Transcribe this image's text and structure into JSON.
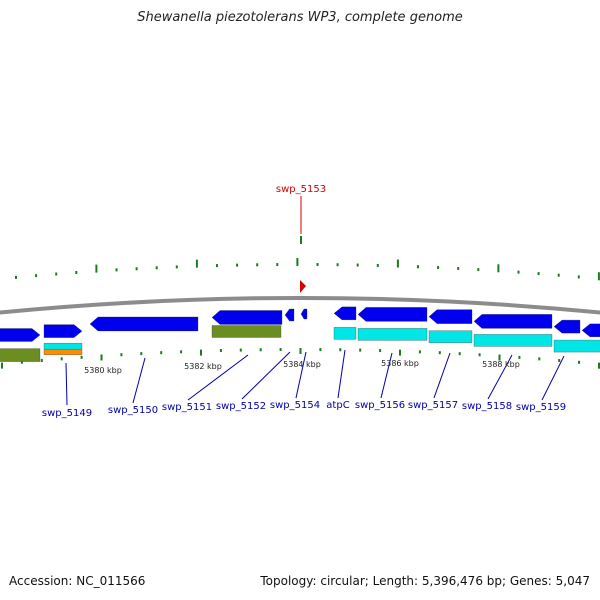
{
  "title": "Shewanella piezotolerans WP3, complete genome",
  "footer": {
    "accession": "Accession: NC_011566",
    "topology": "Topology: circular; Length: 5,396,476 bp; Genes: 5,047"
  },
  "colors": {
    "forward_gene": "#0000ee",
    "reverse_gene": "#00e5e5",
    "green_feature": "#6b8e23",
    "orange_feature": "#ff8c00",
    "backbone": "#8c8c8c",
    "tick": "#1f7a1f",
    "highlight": "#d40000",
    "label": "#0000aa"
  },
  "ruler": [
    {
      "label": "5380 kbp",
      "kbp": 5380
    },
    {
      "label": "5382 kbp",
      "kbp": 5382
    },
    {
      "label": "5384 kbp",
      "kbp": 5384
    },
    {
      "label": "5386 kbp",
      "kbp": 5386
    },
    {
      "label": "5388 kbp",
      "kbp": 5388
    }
  ],
  "highlight": {
    "label": "swp_5153"
  },
  "genes": [
    {
      "label": "swp_5149"
    },
    {
      "label": "swp_5150"
    },
    {
      "label": "swp_5151"
    },
    {
      "label": "swp_5152"
    },
    {
      "label": "swp_5154"
    },
    {
      "label": "atpC"
    },
    {
      "label": "swp_5156"
    },
    {
      "label": "swp_5157"
    },
    {
      "label": "swp_5158"
    },
    {
      "label": "swp_5159"
    }
  ]
}
